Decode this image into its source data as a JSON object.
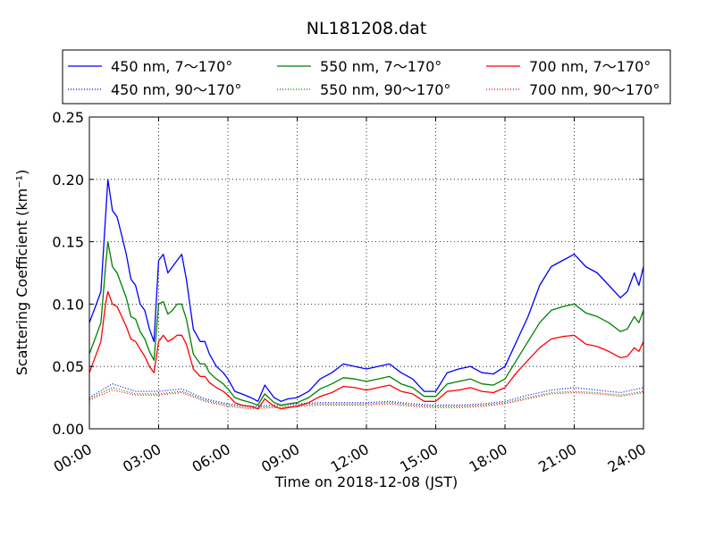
{
  "chart_data": {
    "type": "line",
    "title": "NL181208.dat",
    "xlabel": "Time on 2018-12-08 (JST)",
    "ylabel": "Scattering Coefficient (km⁻¹)",
    "x_ticks": [
      "00:00",
      "03:00",
      "06:00",
      "09:00",
      "12:00",
      "15:00",
      "18:00",
      "21:00",
      "24:00"
    ],
    "y_ticks": [
      "0.00",
      "0.05",
      "0.10",
      "0.15",
      "0.20",
      "0.25"
    ],
    "xlim": [
      0,
      24
    ],
    "ylim": [
      0,
      0.25
    ],
    "grid": true,
    "legend_position": "top",
    "series": [
      {
        "name": "450 nm, 7～170°",
        "color": "#0000ff",
        "style": "solid",
        "x": [
          0,
          0.3,
          0.5,
          0.7,
          0.8,
          1.0,
          1.2,
          1.4,
          1.6,
          1.8,
          2.0,
          2.2,
          2.4,
          2.6,
          2.8,
          3.0,
          3.2,
          3.4,
          3.6,
          3.8,
          4.0,
          4.2,
          4.5,
          4.8,
          5.0,
          5.2,
          5.5,
          5.8,
          6.0,
          6.3,
          6.6,
          7.0,
          7.3,
          7.6,
          8.0,
          8.3,
          8.6,
          9.0,
          9.5,
          10.0,
          10.5,
          11.0,
          11.5,
          12.0,
          12.5,
          13.0,
          13.5,
          14.0,
          14.5,
          15.0,
          15.5,
          16.0,
          16.5,
          17.0,
          17.5,
          18.0,
          18.5,
          19.0,
          19.5,
          20.0,
          20.5,
          21.0,
          21.5,
          22.0,
          22.5,
          23.0,
          23.3,
          23.6,
          23.8,
          24.0
        ],
        "y": [
          0.085,
          0.1,
          0.11,
          0.17,
          0.2,
          0.175,
          0.17,
          0.155,
          0.14,
          0.12,
          0.115,
          0.1,
          0.095,
          0.08,
          0.07,
          0.135,
          0.14,
          0.125,
          0.13,
          0.135,
          0.14,
          0.12,
          0.08,
          0.07,
          0.07,
          0.06,
          0.05,
          0.045,
          0.04,
          0.03,
          0.028,
          0.025,
          0.022,
          0.035,
          0.025,
          0.022,
          0.024,
          0.025,
          0.03,
          0.04,
          0.045,
          0.052,
          0.05,
          0.048,
          0.05,
          0.052,
          0.045,
          0.04,
          0.03,
          0.03,
          0.045,
          0.048,
          0.05,
          0.045,
          0.044,
          0.05,
          0.07,
          0.09,
          0.115,
          0.13,
          0.135,
          0.14,
          0.13,
          0.125,
          0.115,
          0.105,
          0.11,
          0.125,
          0.115,
          0.13
        ]
      },
      {
        "name": "550 nm, 7～170°",
        "color": "#008000",
        "style": "solid",
        "x": [
          0,
          0.3,
          0.5,
          0.7,
          0.8,
          1.0,
          1.2,
          1.4,
          1.6,
          1.8,
          2.0,
          2.2,
          2.4,
          2.6,
          2.8,
          3.0,
          3.2,
          3.4,
          3.6,
          3.8,
          4.0,
          4.2,
          4.5,
          4.8,
          5.0,
          5.2,
          5.5,
          5.8,
          6.0,
          6.3,
          6.6,
          7.0,
          7.3,
          7.6,
          8.0,
          8.3,
          8.6,
          9.0,
          9.5,
          10.0,
          10.5,
          11.0,
          11.5,
          12.0,
          12.5,
          13.0,
          13.5,
          14.0,
          14.5,
          15.0,
          15.5,
          16.0,
          16.5,
          17.0,
          17.5,
          18.0,
          18.5,
          19.0,
          19.5,
          20.0,
          20.5,
          21.0,
          21.5,
          22.0,
          22.5,
          23.0,
          23.3,
          23.6,
          23.8,
          24.0
        ],
        "y": [
          0.06,
          0.075,
          0.085,
          0.13,
          0.15,
          0.13,
          0.125,
          0.115,
          0.105,
          0.09,
          0.088,
          0.078,
          0.072,
          0.062,
          0.055,
          0.1,
          0.102,
          0.092,
          0.095,
          0.1,
          0.1,
          0.088,
          0.06,
          0.052,
          0.052,
          0.045,
          0.04,
          0.036,
          0.032,
          0.025,
          0.023,
          0.021,
          0.019,
          0.028,
          0.021,
          0.019,
          0.02,
          0.021,
          0.025,
          0.032,
          0.036,
          0.041,
          0.04,
          0.038,
          0.04,
          0.042,
          0.036,
          0.033,
          0.026,
          0.026,
          0.036,
          0.038,
          0.04,
          0.036,
          0.035,
          0.04,
          0.055,
          0.07,
          0.085,
          0.095,
          0.098,
          0.1,
          0.093,
          0.09,
          0.085,
          0.078,
          0.08,
          0.09,
          0.085,
          0.095
        ]
      },
      {
        "name": "700 nm, 7～170°",
        "color": "#ff0000",
        "style": "solid",
        "x": [
          0,
          0.3,
          0.5,
          0.7,
          0.8,
          1.0,
          1.2,
          1.4,
          1.6,
          1.8,
          2.0,
          2.2,
          2.4,
          2.6,
          2.8,
          3.0,
          3.2,
          3.4,
          3.6,
          3.8,
          4.0,
          4.2,
          4.5,
          4.8,
          5.0,
          5.2,
          5.5,
          5.8,
          6.0,
          6.3,
          6.6,
          7.0,
          7.3,
          7.6,
          8.0,
          8.3,
          8.6,
          9.0,
          9.5,
          10.0,
          10.5,
          11.0,
          11.5,
          12.0,
          12.5,
          13.0,
          13.5,
          14.0,
          14.5,
          15.0,
          15.5,
          16.0,
          16.5,
          17.0,
          17.5,
          18.0,
          18.5,
          19.0,
          19.5,
          20.0,
          20.5,
          21.0,
          21.5,
          22.0,
          22.5,
          23.0,
          23.3,
          23.6,
          23.8,
          24.0
        ],
        "y": [
          0.045,
          0.06,
          0.07,
          0.1,
          0.11,
          0.1,
          0.098,
          0.09,
          0.082,
          0.072,
          0.07,
          0.064,
          0.058,
          0.05,
          0.045,
          0.07,
          0.075,
          0.07,
          0.072,
          0.075,
          0.075,
          0.068,
          0.048,
          0.042,
          0.042,
          0.037,
          0.033,
          0.03,
          0.027,
          0.021,
          0.019,
          0.018,
          0.016,
          0.024,
          0.018,
          0.016,
          0.017,
          0.018,
          0.021,
          0.026,
          0.029,
          0.034,
          0.033,
          0.031,
          0.033,
          0.035,
          0.03,
          0.028,
          0.022,
          0.022,
          0.03,
          0.031,
          0.033,
          0.03,
          0.029,
          0.033,
          0.045,
          0.055,
          0.065,
          0.072,
          0.074,
          0.075,
          0.068,
          0.066,
          0.062,
          0.057,
          0.058,
          0.065,
          0.062,
          0.07
        ]
      },
      {
        "name": "450 nm, 90～170°",
        "color": "#0000ff",
        "style": "dotted",
        "x": [
          0,
          1,
          2,
          3,
          4,
          5,
          6,
          7,
          8,
          9,
          10,
          11,
          12,
          13,
          14,
          15,
          16,
          17,
          18,
          19,
          20,
          21,
          22,
          23,
          24
        ],
        "y": [
          0.025,
          0.036,
          0.03,
          0.03,
          0.032,
          0.024,
          0.02,
          0.018,
          0.019,
          0.02,
          0.021,
          0.021,
          0.021,
          0.022,
          0.02,
          0.019,
          0.019,
          0.02,
          0.022,
          0.027,
          0.031,
          0.033,
          0.031,
          0.029,
          0.033
        ]
      },
      {
        "name": "550 nm, 90～170°",
        "color": "#008000",
        "style": "dotted",
        "x": [
          0,
          1,
          2,
          3,
          4,
          5,
          6,
          7,
          8,
          9,
          10,
          11,
          12,
          13,
          14,
          15,
          16,
          17,
          18,
          19,
          20,
          21,
          22,
          23,
          24
        ],
        "y": [
          0.024,
          0.033,
          0.028,
          0.028,
          0.03,
          0.023,
          0.019,
          0.017,
          0.018,
          0.019,
          0.02,
          0.02,
          0.02,
          0.021,
          0.019,
          0.018,
          0.018,
          0.019,
          0.021,
          0.025,
          0.029,
          0.03,
          0.029,
          0.027,
          0.03
        ]
      },
      {
        "name": "700 nm, 90～170°",
        "color": "#ff0000",
        "style": "dotted",
        "x": [
          0,
          1,
          2,
          3,
          4,
          5,
          6,
          7,
          8,
          9,
          10,
          11,
          12,
          13,
          14,
          15,
          16,
          17,
          18,
          19,
          20,
          21,
          22,
          23,
          24
        ],
        "y": [
          0.023,
          0.031,
          0.027,
          0.027,
          0.029,
          0.022,
          0.018,
          0.016,
          0.017,
          0.018,
          0.019,
          0.019,
          0.019,
          0.02,
          0.018,
          0.017,
          0.017,
          0.018,
          0.02,
          0.024,
          0.028,
          0.029,
          0.028,
          0.026,
          0.029
        ]
      }
    ]
  }
}
